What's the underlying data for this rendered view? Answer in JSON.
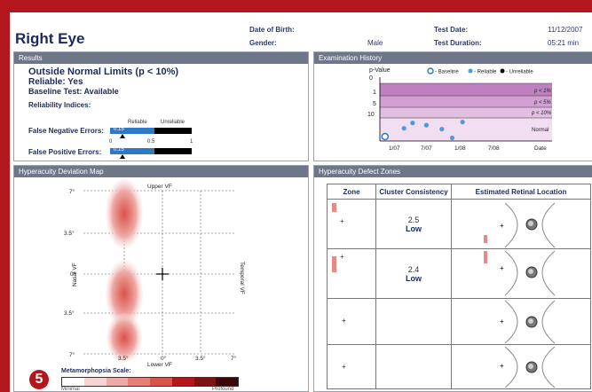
{
  "header": {
    "eye": "Right Eye",
    "dob_label": "Date of Birth:",
    "gender_label": "Gender:",
    "gender_value": "Male",
    "test_date_label": "Test Date:",
    "test_date_value": "11/12/2007",
    "duration_label": "Test Duration:",
    "duration_value": "05:21 min"
  },
  "results": {
    "title": "Results",
    "line1": "Outside Normal Limits (p < 10%)",
    "line2": "Reliable: Yes",
    "line3": "Baseline Test: Available",
    "indices_title": "Reliability Indices:",
    "reliable_label": "Reliable",
    "unreliable_label": "Unreliable",
    "false_negative_label": "False Negative Errors:",
    "false_negative_value": 0.15,
    "false_negative_text": "0.15",
    "false_positive_label": "False Positive Errors:",
    "false_positive_value": 0.15,
    "false_positive_text": "0.15",
    "ticks": [
      "0",
      "0.5",
      "1"
    ]
  },
  "history": {
    "title": "Examination History",
    "legend": {
      "baseline": "- Baseline",
      "reliable": "- Reliable",
      "unreliable": "- Unreliable"
    },
    "bands": [
      "p < 1%",
      "p < 5%",
      "p < 10%",
      "Normal"
    ],
    "axis_label": "Date"
  },
  "hdm": {
    "title": "Hyperacuity Deviation Map",
    "top_label": "Upper VF",
    "bottom_label": "Lower VF",
    "left_label": "Nasal VF",
    "right_label": "Temporal VF",
    "y_ticks": [
      "7°",
      "3.5°",
      "0°",
      "3.5°",
      "7°"
    ],
    "x_ticks": [
      "3.5°",
      "0°",
      "3.5°",
      "7°"
    ],
    "scale_title": "Metamorphopsia Scale:",
    "scale_min": "Minimal",
    "scale_max": "Profound",
    "scale_colors": [
      "#ffffff",
      "#f6d4d2",
      "#eeaaa6",
      "#e57f78",
      "#d9544d",
      "#b3171d",
      "#7d1212",
      "#3a0808"
    ]
  },
  "defects": {
    "title": "Hyperacuity Defect Zones",
    "col_zone": "Zone",
    "col_cc": "Cluster Consistency",
    "col_loc": "Estimated Retinal Location",
    "rows": [
      {
        "num": "2.5",
        "level": "Low"
      },
      {
        "num": "2.4",
        "level": "Low"
      },
      {
        "num": "",
        "level": ""
      },
      {
        "num": "",
        "level": ""
      }
    ]
  },
  "badge": "5",
  "chart_data": {
    "type": "scatter",
    "title": "Examination History",
    "ylabel": "p-Value",
    "xlabel": "Date",
    "x_ticks": [
      "1/07",
      "7/07",
      "1/08",
      "7/08"
    ],
    "y_ticks": [
      "0",
      "1",
      "5",
      "10"
    ],
    "points": [
      {
        "x": 0.03,
        "y": 13.5,
        "kind": "baseline"
      },
      {
        "x": 0.14,
        "y": 11.6,
        "kind": "reliable"
      },
      {
        "x": 0.19,
        "y": 10.4,
        "kind": "reliable"
      },
      {
        "x": 0.27,
        "y": 10.9,
        "kind": "reliable"
      },
      {
        "x": 0.36,
        "y": 11.8,
        "kind": "reliable"
      },
      {
        "x": 0.42,
        "y": 13.8,
        "kind": "reliable"
      },
      {
        "x": 0.48,
        "y": 10.2,
        "kind": "reliable"
      }
    ]
  }
}
